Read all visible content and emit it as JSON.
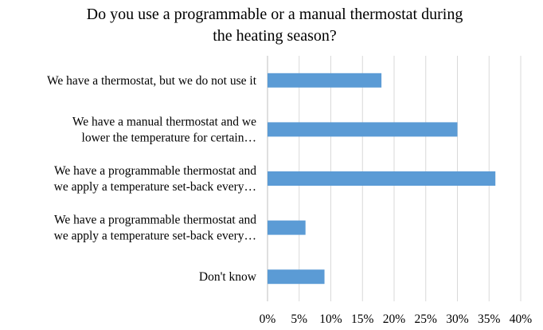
{
  "chart_data": {
    "type": "bar",
    "orientation": "horizontal",
    "title": "Do you use a programmable or a manual thermostat during\nthe heating season?",
    "categories": [
      "We have a thermostat, but we do not use it",
      "We have a manual thermostat and we\nlower the temperature for certain…",
      "We have a programmable thermostat and\nwe apply a temperature set-back every…",
      "We have a programmable thermostat and\nwe apply a temperature set-back every…",
      "Don't know"
    ],
    "values": [
      18,
      30,
      36,
      6,
      9
    ],
    "color": "#5b9bd5",
    "xlim": [
      0,
      40
    ],
    "xticks": [
      {
        "value": 0,
        "label": "0%"
      },
      {
        "value": 5,
        "label": "5%"
      },
      {
        "value": 10,
        "label": "10%"
      },
      {
        "value": 15,
        "label": "15%"
      },
      {
        "value": 20,
        "label": "20%"
      },
      {
        "value": 25,
        "label": "25%"
      },
      {
        "value": 30,
        "label": "30%"
      },
      {
        "value": 35,
        "label": "35%"
      },
      {
        "value": 40,
        "label": "40%"
      }
    ],
    "grid": true
  }
}
